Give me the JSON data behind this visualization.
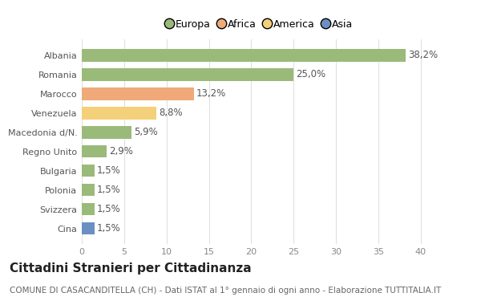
{
  "categories": [
    "Cina",
    "Svizzera",
    "Polonia",
    "Bulgaria",
    "Regno Unito",
    "Macedonia d/N.",
    "Venezuela",
    "Marocco",
    "Romania",
    "Albania"
  ],
  "values": [
    1.5,
    1.5,
    1.5,
    1.5,
    2.9,
    5.9,
    8.8,
    13.2,
    25.0,
    38.2
  ],
  "labels": [
    "1,5%",
    "1,5%",
    "1,5%",
    "1,5%",
    "2,9%",
    "5,9%",
    "8,8%",
    "13,2%",
    "25,0%",
    "38,2%"
  ],
  "colors": [
    "#6b8fc2",
    "#9aba7a",
    "#9aba7a",
    "#9aba7a",
    "#9aba7a",
    "#9aba7a",
    "#f5d07a",
    "#f0aa7a",
    "#9aba7a",
    "#9aba7a"
  ],
  "legend": [
    {
      "label": "Europa",
      "color": "#9aba7a"
    },
    {
      "label": "Africa",
      "color": "#f0aa7a"
    },
    {
      "label": "America",
      "color": "#f5d07a"
    },
    {
      "label": "Asia",
      "color": "#6b8fc2"
    }
  ],
  "title": "Cittadini Stranieri per Cittadinanza",
  "subtitle": "COMUNE DI CASACANDITELLA (CH) - Dati ISTAT al 1° gennaio di ogni anno - Elaborazione TUTTITALIA.IT",
  "xlim": [
    0,
    42
  ],
  "xticks": [
    0,
    5,
    10,
    15,
    20,
    25,
    30,
    35,
    40
  ],
  "background_color": "#ffffff",
  "grid_color": "#e0e0e0",
  "bar_height": 0.65,
  "label_fontsize": 8.5,
  "tick_fontsize": 8,
  "title_fontsize": 11,
  "subtitle_fontsize": 7.5
}
